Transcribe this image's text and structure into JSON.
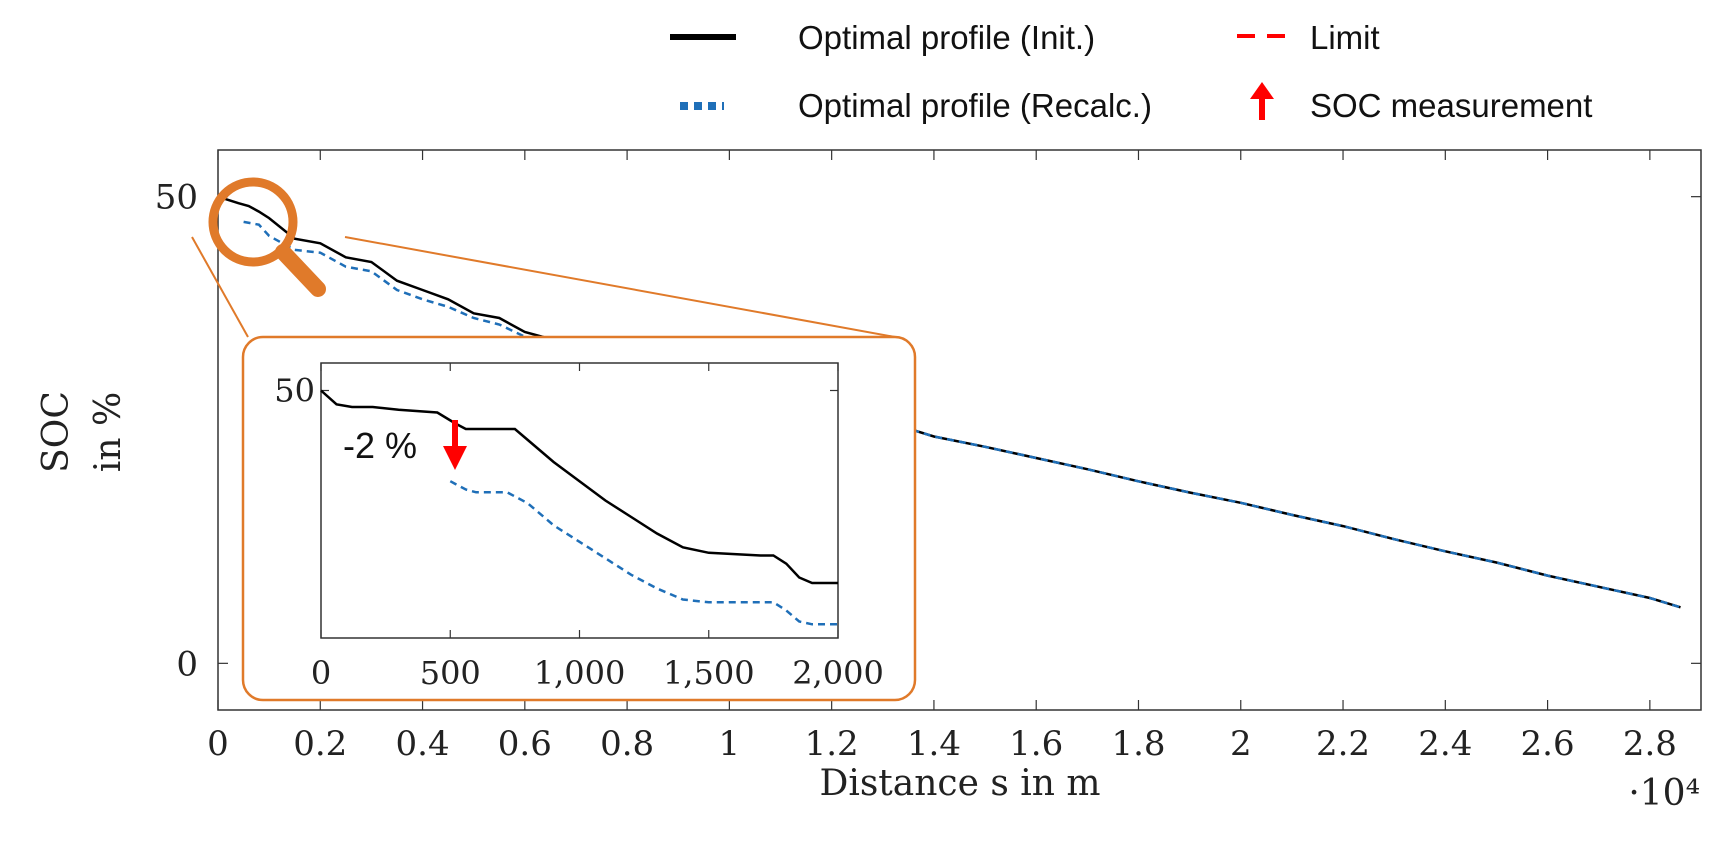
{
  "chart_data": {
    "type": "line",
    "xlabel": "Distance s in m",
    "ylabel_line1": "SOC",
    "ylabel_line2": "in %",
    "x_multiplier_label": "·10⁴",
    "xlim": [
      0,
      2.9
    ],
    "ylim": [
      -5,
      55
    ],
    "x_ticks": [
      "0",
      "0.2",
      "0.4",
      "0.6",
      "0.8",
      "1",
      "1.2",
      "1.4",
      "1.6",
      "1.8",
      "2",
      "2.2",
      "2.4",
      "2.6",
      "2.8"
    ],
    "y_ticks": [
      "0",
      "50"
    ],
    "legend": {
      "placement": "top-right",
      "entries": [
        {
          "label": "Optimal profile (Init.)",
          "style": "solid",
          "color": "#000000"
        },
        {
          "label": "Limit",
          "style": "dashed",
          "color": "#ff0000"
        },
        {
          "label": "Optimal profile (Recalc.)",
          "style": "dotted",
          "color": "#1f6fb8"
        },
        {
          "label": "SOC measurement",
          "style": "arrow",
          "color": "#ff0000"
        }
      ]
    },
    "series": [
      {
        "name": "Optimal profile (Init.)",
        "x": [
          0,
          0.04,
          0.06,
          0.08,
          0.1,
          0.15,
          0.2,
          0.25,
          0.3,
          0.35,
          0.4,
          0.45,
          0.5,
          0.55,
          0.6,
          0.7,
          0.8,
          0.9,
          1.0,
          1.1,
          1.2,
          1.3,
          1.4,
          1.5,
          1.6,
          1.7,
          1.8,
          1.9,
          2.0,
          2.1,
          2.2,
          2.3,
          2.4,
          2.5,
          2.6,
          2.7,
          2.8,
          2.86
        ],
        "y": [
          50,
          49.3,
          49,
          48.4,
          47.7,
          45.5,
          45,
          43.5,
          43,
          41,
          40,
          39,
          37.5,
          37,
          35.5,
          34,
          33,
          31.5,
          30,
          28.5,
          28,
          26,
          24.3,
          23.2,
          22,
          20.8,
          19.5,
          18.3,
          17.2,
          15.9,
          14.7,
          13.3,
          12,
          10.8,
          9.4,
          8.2,
          7,
          6
        ]
      },
      {
        "name": "Optimal profile (Recalc.)",
        "x": [
          0.05,
          0.08,
          0.1,
          0.15,
          0.2,
          0.25,
          0.3,
          0.35,
          0.4,
          0.45,
          0.5,
          0.55,
          0.6,
          0.7,
          0.8,
          0.9,
          1.0,
          1.1,
          1.2,
          1.3,
          1.4,
          1.5,
          1.6,
          1.7,
          1.8,
          1.9,
          2.0,
          2.1,
          2.2,
          2.3,
          2.4,
          2.5,
          2.6,
          2.7,
          2.8,
          2.86
        ],
        "y": [
          47.3,
          47,
          45.8,
          44.3,
          44,
          42.5,
          42,
          40,
          39,
          38.2,
          37,
          36.3,
          35,
          33.8,
          32.5,
          31.3,
          29.8,
          28.5,
          27.8,
          26,
          24.3,
          23.2,
          22,
          20.8,
          19.5,
          18.3,
          17.2,
          15.9,
          14.7,
          13.3,
          12,
          10.8,
          9.4,
          8.2,
          7,
          6
        ]
      }
    ],
    "inset": {
      "x_ticks": [
        "0",
        "500",
        "1,000",
        "1,500",
        "2,000"
      ],
      "y_ticks": [
        "50"
      ],
      "xlim": [
        0,
        2000
      ],
      "ylim": [
        41,
        51
      ],
      "annotation": "-2 %",
      "series": [
        {
          "name": "Optimal profile (Init.)",
          "x": [
            0,
            60,
            120,
            200,
            300,
            450,
            520,
            560,
            600,
            750,
            800,
            900,
            1000,
            1100,
            1200,
            1300,
            1400,
            1500,
            1600,
            1700,
            1750,
            1800,
            1850,
            1900,
            1950,
            2000
          ],
          "y": [
            50,
            49.5,
            49.4,
            49.4,
            49.3,
            49.2,
            48.8,
            48.6,
            48.6,
            48.6,
            48.2,
            47.4,
            46.7,
            46.0,
            45.4,
            44.8,
            44.3,
            44.1,
            44.05,
            44.0,
            44.0,
            43.7,
            43.2,
            43.0,
            43.0,
            43.0
          ]
        },
        {
          "name": "Optimal profile (Recalc.)",
          "x": [
            500,
            520,
            560,
            600,
            720,
            800,
            900,
            1000,
            1100,
            1200,
            1300,
            1400,
            1500,
            1600,
            1700,
            1750,
            1800,
            1850,
            1900,
            1950,
            2000
          ],
          "y": [
            46.7,
            46.6,
            46.4,
            46.3,
            46.3,
            45.9,
            45.1,
            44.5,
            43.9,
            43.3,
            42.8,
            42.4,
            42.3,
            42.3,
            42.3,
            42.3,
            42.0,
            41.6,
            41.5,
            41.5,
            41.5
          ]
        }
      ]
    }
  }
}
